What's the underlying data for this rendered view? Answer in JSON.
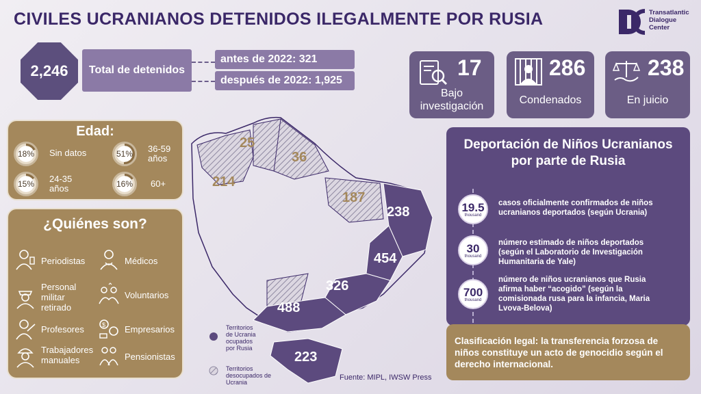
{
  "title": "CIVILES UCRANIANOS DETENIDOS ILEGALMENTE POR RUSIA",
  "logo": {
    "mark": "DC",
    "line1": "Transatlantic",
    "line2": "Dialogue",
    "line3": "Center"
  },
  "total": {
    "value": "2,246",
    "label": "Total de detenidos",
    "before": "antes de 2022: 321",
    "after": "después de 2022: 1,925"
  },
  "stats": [
    {
      "value": "17",
      "label1": "Bajo",
      "label2": "investigación",
      "icon": "investigation-icon"
    },
    {
      "value": "286",
      "label1": "Condenados",
      "label2": "",
      "icon": "prison-icon"
    },
    {
      "value": "238",
      "label1": "En juicio",
      "label2": "",
      "icon": "scales-icon"
    }
  ],
  "edad": {
    "title": "Edad:",
    "items": [
      {
        "pct": "18%",
        "fraction": 0.18,
        "label1": "Sin datos",
        "label2": ""
      },
      {
        "pct": "51%",
        "fraction": 0.51,
        "label1": "36-59",
        "label2": "años"
      },
      {
        "pct": "15%",
        "fraction": 0.15,
        "label1": "24-35",
        "label2": "años"
      },
      {
        "pct": "16%",
        "fraction": 0.16,
        "label1": "60+",
        "label2": ""
      }
    ]
  },
  "who": {
    "title": "¿Quiénes son?",
    "left": [
      {
        "l1": "Periodistas",
        "l2": "",
        "l3": "",
        "icon": "journalist-icon"
      },
      {
        "l1": "Personal",
        "l2": "militar",
        "l3": "retirado",
        "icon": "military-icon"
      },
      {
        "l1": "Profesores",
        "l2": "",
        "l3": "",
        "icon": "teacher-icon"
      },
      {
        "l1": "Trabajadores",
        "l2": "manuales",
        "l3": "",
        "icon": "worker-icon"
      }
    ],
    "right": [
      {
        "l1": "Médicos",
        "icon": "doctor-icon"
      },
      {
        "l1": "Voluntarios",
        "icon": "volunteer-icon"
      },
      {
        "l1": "Empresarios",
        "icon": "business-icon"
      },
      {
        "l1": "Pensionistas",
        "icon": "pensioner-icon"
      }
    ]
  },
  "map": {
    "labels": [
      "25",
      "36",
      "214",
      "187",
      "238",
      "454",
      "326",
      "488",
      "223"
    ],
    "legend_occupied": [
      "Territorios",
      "de Ucrania",
      "ocupados",
      "por Rusia"
    ],
    "legend_deoccupied": [
      "Territorios",
      "desocupados de",
      "Ucrania"
    ],
    "colors": {
      "occupied": "#5c4a7e",
      "deoccupied": "#c9c4cf",
      "accent_gold": "#a4885c"
    }
  },
  "deport": {
    "title1": "Deportación de Niños Ucranianos",
    "title2": "por parte de Rusia",
    "items": [
      {
        "num": "19.5",
        "unit": "thousand",
        "t1": "casos oficialmente confirmados de niños",
        "t2": "ucranianos deportados (según Ucrania)",
        "t3": "",
        "t4": ""
      },
      {
        "num": "30",
        "unit": "thousand",
        "t1": "número estimado de niños deportados",
        "t2": "(según el Laboratorio de Investigación",
        "t3": "Humanitaria de Yale)",
        "t4": ""
      },
      {
        "num": "700",
        "unit": "thousand",
        "t1": "número de niños ucranianos que Rusia",
        "t2": "afirma haber “acogido” (según la",
        "t3": "comisionada rusa para la infancia, Maria",
        "t4": "Lvova-Belova)"
      }
    ]
  },
  "legal": "Clasificación legal: la transferencia forzosa de niños constituye un acto de genocidio según el derecho internacional.",
  "source": "Fuente: MIPL, IWSW Press"
}
